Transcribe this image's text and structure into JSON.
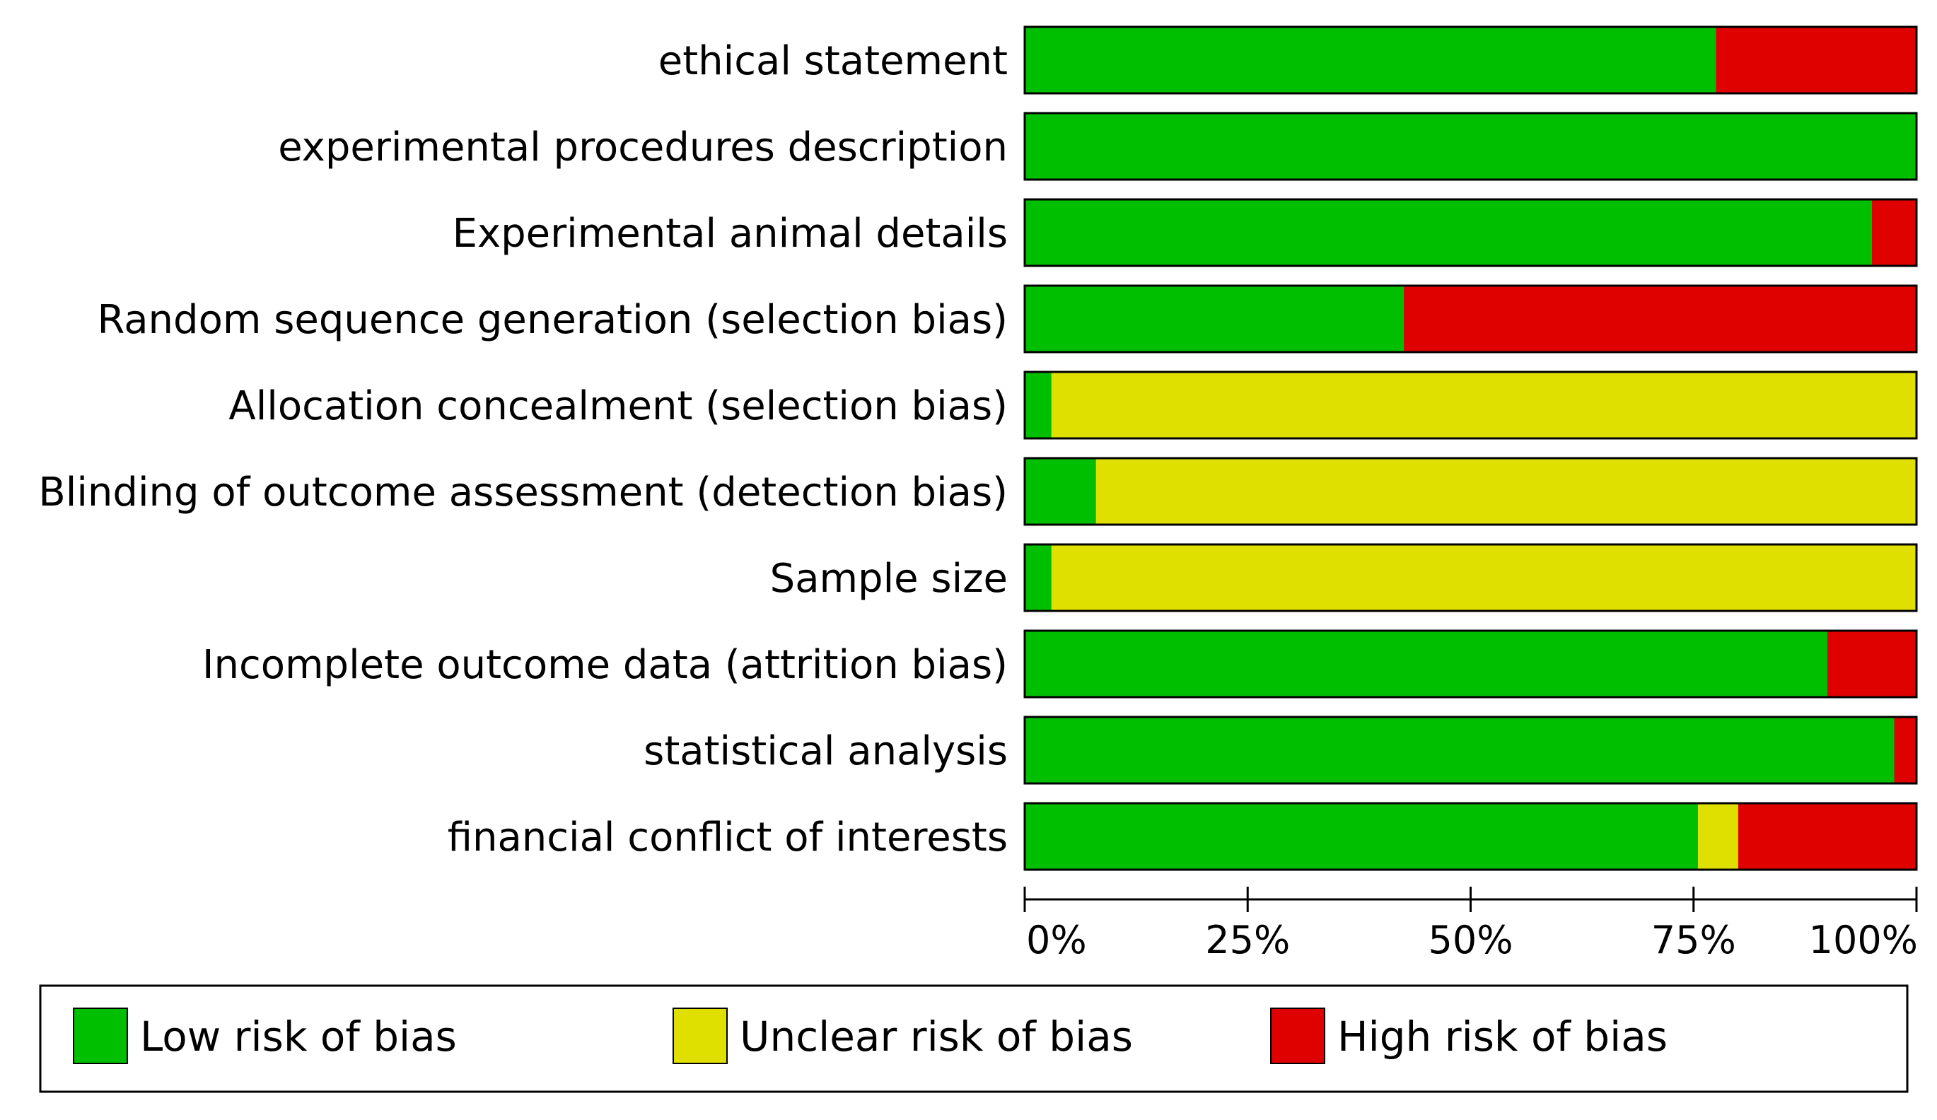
{
  "colors": {
    "low": "#00bf00",
    "unclear": "#dfdf00",
    "high": "#df0000",
    "outline": "#000000"
  },
  "chart_data": {
    "type": "bar",
    "orientation": "horizontal",
    "stacked": true,
    "title": "",
    "xlabel": "",
    "ylabel": "",
    "xlim": [
      0,
      100
    ],
    "x_ticks": [
      0,
      25,
      50,
      75,
      100
    ],
    "x_tick_labels": [
      "0%",
      "25%",
      "50%",
      "75%",
      "100%"
    ],
    "legend_position": "bottom",
    "categories": [
      "ethical statement",
      "experimental procedures description",
      "Experimental animal details",
      "Random sequence generation (selection bias)",
      "Allocation concealment (selection bias)",
      "Blinding of outcome assessment (detection bias)",
      "Sample size",
      "Incomplete outcome data (attrition bias)",
      "statistical analysis",
      "financial conflict of interests"
    ],
    "series": [
      {
        "name": "Low risk of bias",
        "color_key": "low",
        "values": [
          77.5,
          100,
          95,
          42.5,
          3,
          8,
          3,
          90,
          97.5,
          75.5
        ]
      },
      {
        "name": "Unclear risk of bias",
        "color_key": "unclear",
        "values": [
          0,
          0,
          0,
          0,
          97,
          92,
          97,
          0,
          0,
          4.5
        ]
      },
      {
        "name": "High risk of bias",
        "color_key": "high",
        "values": [
          22.5,
          0,
          5,
          57.5,
          0,
          0,
          0,
          10,
          2.5,
          20
        ]
      }
    ]
  }
}
